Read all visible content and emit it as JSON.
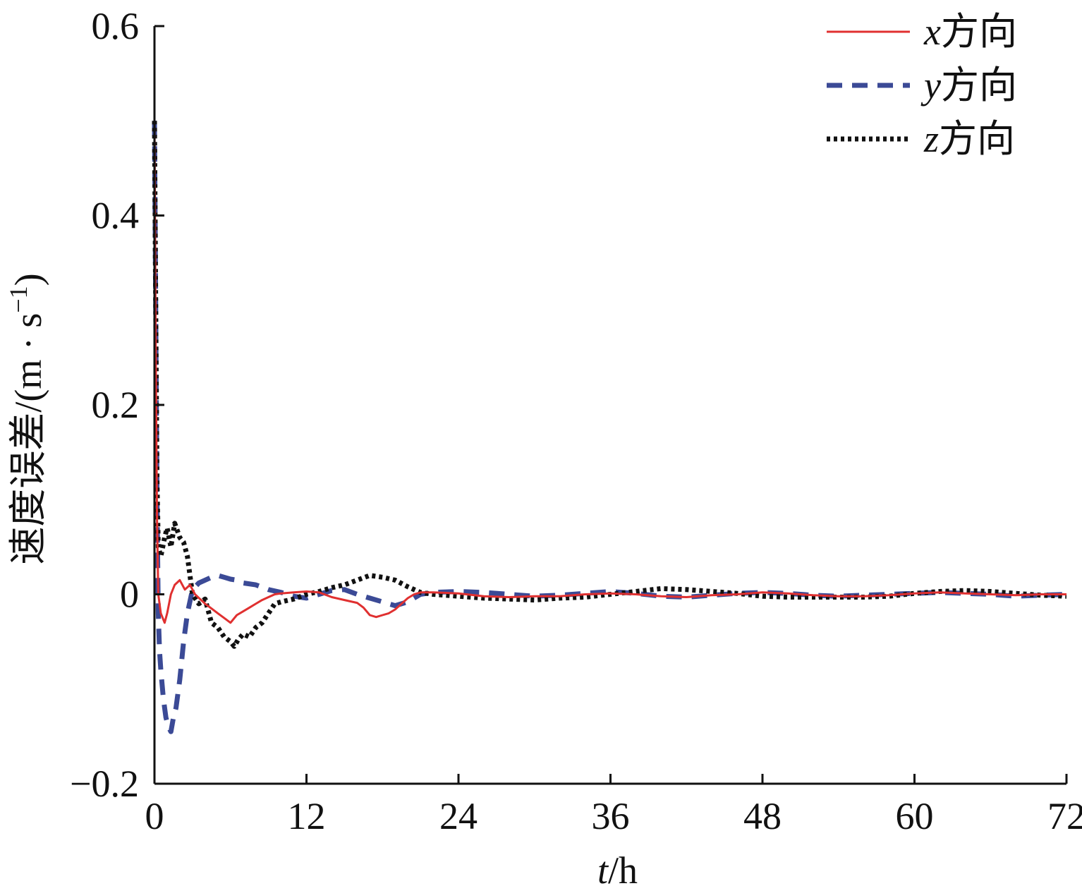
{
  "chart_data": {
    "type": "line",
    "xlabel_var": "t",
    "xlabel_unit": "/h",
    "ylabel_main": "速度误差/(m · s",
    "ylabel_sup": "−1",
    "ylabel_close": ")",
    "xlim": [
      0,
      72
    ],
    "ylim": [
      -0.2,
      0.6
    ],
    "xticks": [
      0,
      12,
      24,
      36,
      48,
      60,
      72
    ],
    "xtick_labels": [
      "0",
      "12",
      "24",
      "36",
      "48",
      "60",
      "72"
    ],
    "yticks": [
      -0.2,
      0,
      0.2,
      0.4,
      0.6
    ],
    "ytick_labels": [
      "−0.2",
      "0",
      "0.2",
      "0.4",
      "0.6"
    ],
    "grid": false,
    "legend_position": "top-right",
    "series": [
      {
        "name": "x方向",
        "name_var": "x",
        "name_rest": "方向",
        "color": "#e03030",
        "style": "solid",
        "x": [
          0,
          0.1,
          0.2,
          0.3,
          0.5,
          0.8,
          1.0,
          1.3,
          1.6,
          2.0,
          2.4,
          2.8,
          3.2,
          3.6,
          4.0,
          4.5,
          5.0,
          5.5,
          6.0,
          6.5,
          7.0,
          7.5,
          8.0,
          8.5,
          9.0,
          9.5,
          10,
          11,
          12,
          13,
          14,
          15,
          16,
          16.5,
          17,
          17.5,
          18,
          18.5,
          19,
          19.5,
          20,
          20.5,
          21,
          22,
          24,
          26,
          28,
          30,
          32,
          34,
          36,
          38,
          40,
          42,
          44,
          46,
          48,
          50,
          52,
          54,
          56,
          58,
          60,
          62,
          64,
          66,
          68,
          70,
          72
        ],
        "y": [
          0.5,
          0.25,
          0.08,
          0.0,
          -0.02,
          -0.03,
          -0.02,
          0.0,
          0.01,
          0.015,
          0.005,
          0.01,
          0.0,
          -0.005,
          -0.01,
          -0.015,
          -0.02,
          -0.025,
          -0.03,
          -0.022,
          -0.018,
          -0.014,
          -0.01,
          -0.006,
          -0.003,
          0.0,
          0.001,
          0.002,
          0.003,
          0.002,
          -0.003,
          -0.006,
          -0.009,
          -0.014,
          -0.022,
          -0.024,
          -0.022,
          -0.02,
          -0.016,
          -0.01,
          -0.004,
          0.0,
          0.002,
          0.002,
          0.001,
          -0.002,
          -0.003,
          -0.002,
          -0.002,
          0.0,
          0.001,
          0.0,
          -0.002,
          -0.003,
          -0.001,
          0.0,
          0.002,
          0.001,
          -0.001,
          -0.002,
          -0.002,
          -0.001,
          0.001,
          0.002,
          0.001,
          0.0,
          -0.001,
          0.0,
          0.0
        ]
      },
      {
        "name": "y方向",
        "name_var": "y",
        "name_rest": "方向",
        "color": "#3b4a96",
        "style": "dashed",
        "x": [
          0,
          0.1,
          0.2,
          0.3,
          0.4,
          0.5,
          0.7,
          0.9,
          1.1,
          1.3,
          1.5,
          1.7,
          2.0,
          2.3,
          2.6,
          3.0,
          3.5,
          4.0,
          4.5,
          5.0,
          5.5,
          6.0,
          6.5,
          7.0,
          8.0,
          9.0,
          10,
          11,
          12,
          13,
          14,
          15,
          16,
          17,
          18,
          19,
          20,
          21,
          22,
          24,
          26,
          28,
          30,
          32,
          34,
          36,
          38,
          40,
          42,
          44,
          46,
          48,
          50,
          52,
          54,
          56,
          58,
          60,
          62,
          64,
          66,
          68,
          70,
          72
        ],
        "y": [
          0.5,
          0.3,
          0.1,
          -0.02,
          -0.06,
          -0.08,
          -0.11,
          -0.13,
          -0.14,
          -0.145,
          -0.13,
          -0.12,
          -0.09,
          -0.05,
          -0.02,
          0.005,
          0.012,
          0.015,
          0.018,
          0.02,
          0.018,
          0.016,
          0.015,
          0.012,
          0.01,
          0.005,
          0.002,
          -0.002,
          -0.004,
          0.0,
          0.004,
          0.005,
          0.0,
          -0.004,
          -0.008,
          -0.012,
          -0.008,
          0.0,
          0.002,
          0.003,
          0.002,
          0.0,
          -0.002,
          -0.001,
          0.001,
          0.003,
          0.001,
          -0.002,
          -0.003,
          -0.001,
          0.001,
          0.002,
          0.001,
          -0.001,
          -0.002,
          -0.001,
          0.0,
          0.001,
          0.002,
          0.001,
          0.0,
          -0.002,
          -0.001,
          0.0
        ]
      },
      {
        "name": "z方向",
        "name_var": "z",
        "name_rest": "方向",
        "color": "#111111",
        "style": "dotted",
        "x": [
          0,
          0.1,
          0.2,
          0.3,
          0.5,
          0.8,
          1.0,
          1.3,
          1.6,
          2.0,
          2.3,
          2.6,
          3.0,
          3.5,
          4.0,
          4.5,
          5.0,
          5.5,
          6.0,
          6.3,
          6.6,
          7.0,
          7.5,
          8.0,
          8.5,
          9.0,
          9.5,
          10,
          11,
          12,
          13,
          14,
          15,
          16,
          17,
          18,
          19,
          20,
          21,
          22,
          24,
          26,
          28,
          30,
          32,
          34,
          36,
          38,
          40,
          42,
          44,
          46,
          48,
          50,
          52,
          54,
          56,
          58,
          60,
          62,
          64,
          66,
          68,
          70,
          72
        ],
        "y": [
          0.5,
          0.3,
          0.12,
          0.05,
          0.04,
          0.06,
          0.07,
          0.05,
          0.075,
          0.06,
          0.055,
          0.04,
          0.0,
          -0.01,
          -0.005,
          -0.03,
          -0.035,
          -0.045,
          -0.05,
          -0.055,
          -0.048,
          -0.042,
          -0.045,
          -0.035,
          -0.03,
          -0.02,
          -0.01,
          -0.008,
          -0.005,
          0.0,
          0.003,
          0.007,
          0.01,
          0.015,
          0.02,
          0.018,
          0.015,
          0.008,
          0.002,
          0.0,
          -0.002,
          -0.004,
          -0.005,
          -0.006,
          -0.004,
          -0.003,
          0.0,
          0.003,
          0.006,
          0.005,
          0.003,
          0.001,
          -0.002,
          -0.003,
          -0.003,
          -0.003,
          -0.003,
          -0.002,
          0.001,
          0.003,
          0.004,
          0.003,
          0.001,
          -0.001,
          -0.002
        ]
      }
    ]
  }
}
